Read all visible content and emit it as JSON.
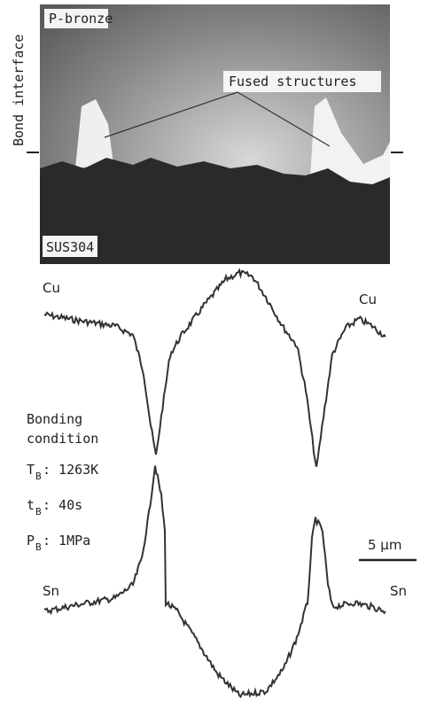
{
  "micrograph": {
    "top_label": "P-bronze",
    "bottom_label": "SUS304",
    "annotation": "Fused structures",
    "side_label": "Bond interface"
  },
  "profiles": {
    "upper_left": "Cu",
    "upper_right": "Cu",
    "lower_left": "Sn",
    "lower_right": "Sn"
  },
  "condition": {
    "title_line1": "Bonding",
    "title_line2": "condition",
    "items": [
      {
        "symbol": "T",
        "subscript": "B",
        "value": ": 1263K"
      },
      {
        "symbol": "t",
        "subscript": "B",
        "value": ": 40s"
      },
      {
        "symbol": "P",
        "subscript": "B",
        "value": ": 1MPa"
      }
    ]
  },
  "scale_bar": "5 μm"
}
